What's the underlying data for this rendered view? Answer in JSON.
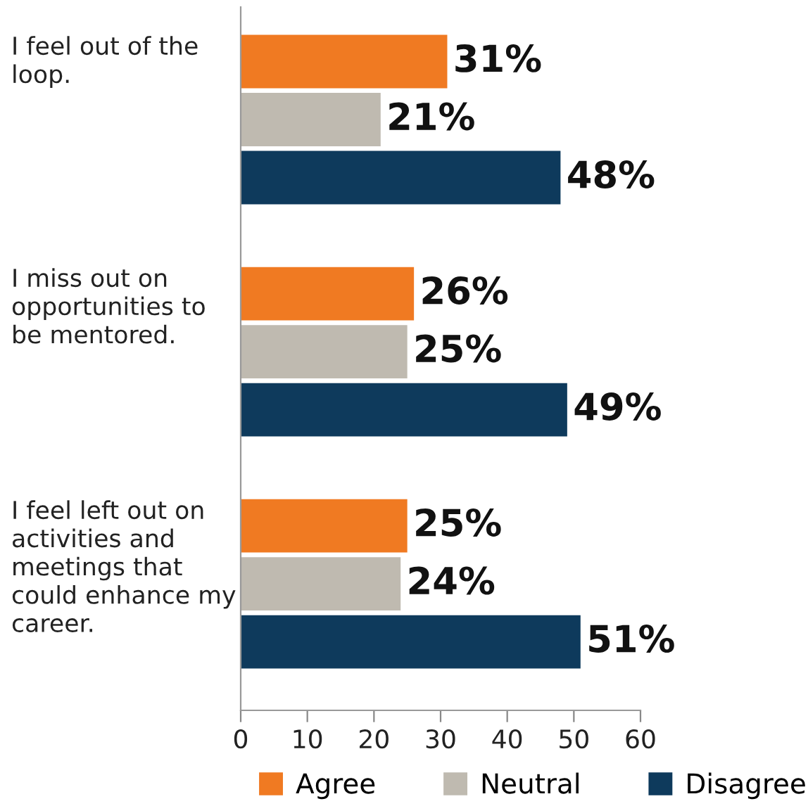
{
  "chart_data": {
    "type": "bar",
    "orientation": "horizontal",
    "categories": [
      "I feel out of the loop.",
      "I miss out on opportunities to be mentored.",
      "I feel left out on activities and meetings that could enhance my career."
    ],
    "series": [
      {
        "name": "Agree",
        "color": "#f07a22",
        "values": [
          31,
          26,
          25
        ],
        "value_labels": [
          "31%",
          "26%",
          "25%"
        ]
      },
      {
        "name": "Neutral",
        "color": "#bfbab0",
        "values": [
          21,
          25,
          24
        ],
        "value_labels": [
          "21%",
          "25%",
          "24%"
        ]
      },
      {
        "name": "Disagree",
        "color": "#0e3a5c",
        "values": [
          48,
          49,
          51
        ],
        "value_labels": [
          "48%",
          "49%",
          "51%"
        ]
      }
    ],
    "xlim": [
      0,
      60
    ],
    "xticks": [
      0,
      10,
      20,
      30,
      40,
      50,
      60
    ],
    "grid": false,
    "legend": "bottom"
  }
}
